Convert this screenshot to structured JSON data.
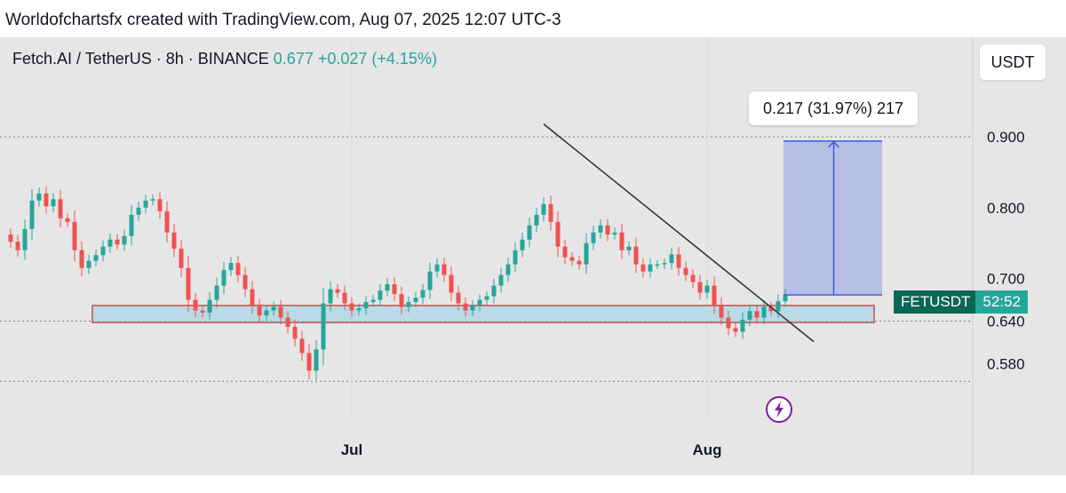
{
  "credit": "Worldofchartsfx created with TradingView.com, Aug 07, 2025 12:07 UTC-3",
  "header": {
    "pair": "Fetch.AI / TetherUS · 8h · BINANCE",
    "price": "0.677",
    "change": "+0.027 (+4.15%)"
  },
  "currency_button": "USDT",
  "symbol_tag": {
    "symbol": "FETUSDT",
    "countdown": "52:52"
  },
  "measure_label": "0.217 (31.97%) 217",
  "colors": {
    "up": "#26a69a",
    "down": "#ef5350",
    "zone_fill": "#a9d6e5",
    "zone_border": "#c0504d",
    "measure": "#3b5bdb",
    "trendline": "#2a2e39",
    "accent": "#7b1fa2"
  },
  "icons": {
    "alert": "lightning-bolt-icon"
  },
  "chart_data": {
    "type": "candlestick",
    "interval": "8h",
    "y_tick_labels": [
      "0.900",
      "0.800",
      "0.700",
      "0.640",
      "0.580"
    ],
    "x_tick_labels": [
      "Jul",
      "Aug"
    ],
    "price_levels_dotted": [
      0.9,
      0.64,
      0.555
    ],
    "support_zone": {
      "low": 0.638,
      "high": 0.662
    },
    "measurement": {
      "from": 0.677,
      "to": 0.894,
      "diff": 0.217,
      "percent": 31.97
    },
    "trendline": [
      {
        "index": 75,
        "price": 0.918
      },
      {
        "index": 113,
        "price": 0.611
      }
    ],
    "closes": [
      0.752,
      0.74,
      0.77,
      0.81,
      0.82,
      0.802,
      0.812,
      0.785,
      0.78,
      0.74,
      0.715,
      0.725,
      0.733,
      0.745,
      0.755,
      0.748,
      0.76,
      0.79,
      0.8,
      0.81,
      0.812,
      0.795,
      0.765,
      0.742,
      0.715,
      0.67,
      0.655,
      0.652,
      0.67,
      0.69,
      0.712,
      0.722,
      0.705,
      0.685,
      0.662,
      0.648,
      0.655,
      0.66,
      0.645,
      0.632,
      0.615,
      0.595,
      0.57,
      0.6,
      0.665,
      0.685,
      0.68,
      0.665,
      0.655,
      0.658,
      0.667,
      0.67,
      0.683,
      0.692,
      0.678,
      0.66,
      0.667,
      0.673,
      0.684,
      0.71,
      0.72,
      0.705,
      0.68,
      0.665,
      0.655,
      0.662,
      0.67,
      0.675,
      0.69,
      0.705,
      0.72,
      0.74,
      0.755,
      0.775,
      0.79,
      0.805,
      0.78,
      0.745,
      0.73,
      0.725,
      0.72,
      0.75,
      0.765,
      0.775,
      0.762,
      0.765,
      0.74,
      0.745,
      0.72,
      0.71,
      0.72,
      0.72,
      0.722,
      0.734,
      0.715,
      0.705,
      0.695,
      0.68,
      0.69,
      0.663,
      0.645,
      0.63,
      0.625,
      0.642,
      0.654,
      0.645,
      0.66,
      0.654,
      0.668,
      0.677
    ]
  }
}
